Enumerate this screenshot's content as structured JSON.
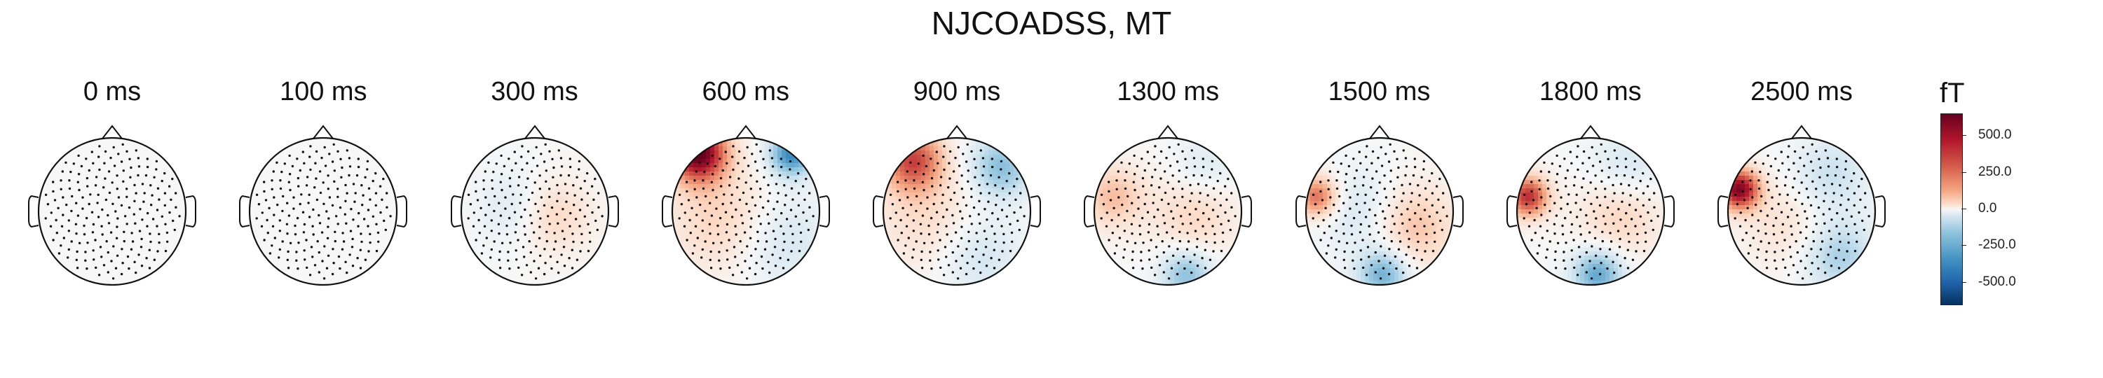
{
  "chart_data": {
    "type": "heatmap",
    "title": "NJCOADSS, MT",
    "unit": "fT",
    "colorbar_ticks": [
      {
        "label": "500.0",
        "value": 500
      },
      {
        "label": "250.0",
        "value": 250
      },
      {
        "label": "0.0",
        "value": 0
      },
      {
        "label": "-250.0",
        "value": -250
      },
      {
        "label": "-500.0",
        "value": -500
      }
    ],
    "colorbar_range": [
      -650,
      650
    ],
    "colormap": [
      "#053061",
      "#2166ac",
      "#4393c3",
      "#92c5de",
      "#d1e5f0",
      "#f7f7f7",
      "#fddbc7",
      "#f4a582",
      "#d6604d",
      "#b2182b",
      "#67001f"
    ],
    "topomaps": [
      {
        "label": "0 ms",
        "time_ms": 0,
        "blobs": []
      },
      {
        "label": "100 ms",
        "time_ms": 100,
        "blobs": []
      },
      {
        "label": "300 ms",
        "time_ms": 300,
        "blobs": [
          {
            "x": 0.25,
            "y": -0.05,
            "sigma": 0.35,
            "value": 150
          },
          {
            "x": -0.25,
            "y": 0.05,
            "sigma": 0.35,
            "value": -100
          }
        ]
      },
      {
        "label": "600 ms",
        "time_ms": 600,
        "blobs": [
          {
            "x": -0.65,
            "y": 0.8,
            "sigma": 0.28,
            "value": 650
          },
          {
            "x": 0.62,
            "y": 0.78,
            "sigma": 0.22,
            "value": -420
          },
          {
            "x": -0.35,
            "y": -0.1,
            "sigma": 0.5,
            "value": 150
          },
          {
            "x": 0.5,
            "y": -0.4,
            "sigma": 0.45,
            "value": -120
          }
        ]
      },
      {
        "label": "900 ms",
        "time_ms": 900,
        "blobs": [
          {
            "x": -0.6,
            "y": 0.7,
            "sigma": 0.3,
            "value": 420
          },
          {
            "x": 0.6,
            "y": 0.6,
            "sigma": 0.3,
            "value": -280
          },
          {
            "x": -0.4,
            "y": -0.1,
            "sigma": 0.5,
            "value": 120
          },
          {
            "x": 0.3,
            "y": -0.6,
            "sigma": 0.4,
            "value": -130
          }
        ]
      },
      {
        "label": "1300 ms",
        "time_ms": 1300,
        "blobs": [
          {
            "x": -0.75,
            "y": 0.2,
            "sigma": 0.3,
            "value": 200
          },
          {
            "x": 0.35,
            "y": -0.05,
            "sigma": 0.4,
            "value": 140
          },
          {
            "x": 0.25,
            "y": -0.85,
            "sigma": 0.25,
            "value": -280
          },
          {
            "x": 0.5,
            "y": 0.6,
            "sigma": 0.3,
            "value": -100
          }
        ]
      },
      {
        "label": "1500 ms",
        "time_ms": 1500,
        "blobs": [
          {
            "x": -0.85,
            "y": 0.2,
            "sigma": 0.2,
            "value": 380
          },
          {
            "x": 0.45,
            "y": -0.2,
            "sigma": 0.4,
            "value": 200
          },
          {
            "x": 0.05,
            "y": -0.85,
            "sigma": 0.25,
            "value": -330
          },
          {
            "x": -0.25,
            "y": 0.0,
            "sigma": 0.4,
            "value": -120
          }
        ]
      },
      {
        "label": "1800 ms",
        "time_ms": 1800,
        "blobs": [
          {
            "x": -0.85,
            "y": 0.2,
            "sigma": 0.2,
            "value": 480
          },
          {
            "x": 0.4,
            "y": -0.05,
            "sigma": 0.4,
            "value": 150
          },
          {
            "x": 0.1,
            "y": -0.85,
            "sigma": 0.25,
            "value": -350
          },
          {
            "x": 0.5,
            "y": 0.6,
            "sigma": 0.35,
            "value": -120
          }
        ]
      },
      {
        "label": "2500 ms",
        "time_ms": 2500,
        "blobs": [
          {
            "x": -0.85,
            "y": 0.3,
            "sigma": 0.2,
            "value": 600
          },
          {
            "x": 0.5,
            "y": -0.6,
            "sigma": 0.35,
            "value": -220
          },
          {
            "x": 0.4,
            "y": 0.5,
            "sigma": 0.35,
            "value": -150
          },
          {
            "x": -0.2,
            "y": -0.2,
            "sigma": 0.4,
            "value": 100
          }
        ]
      }
    ]
  }
}
